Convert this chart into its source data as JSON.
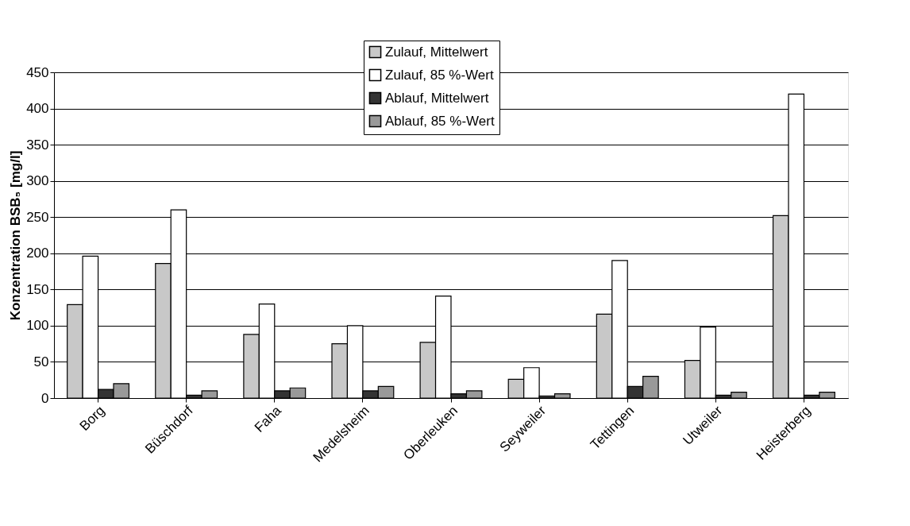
{
  "chart_data": {
    "type": "bar",
    "ylabel": "Konzentration BSB₅ [mg/l]",
    "categories": [
      "Borg",
      "Büschdorf",
      "Faha",
      "Medelsheim",
      "Oberleuken",
      "Seyweiler",
      "Tettingen",
      "Utweiler",
      "Heisterberg"
    ],
    "series": [
      {
        "name": "Zulauf, Mittelwert",
        "color": "#c8c8c8",
        "values": [
          129,
          186,
          88,
          75,
          77,
          26,
          116,
          52,
          252
        ]
      },
      {
        "name": "Zulauf, 85 %-Wert",
        "color": "#ffffff",
        "values": [
          196,
          260,
          130,
          100,
          141,
          42,
          190,
          98,
          420
        ]
      },
      {
        "name": "Ablauf, Mittelwert",
        "color": "#333333",
        "values": [
          12,
          4,
          10,
          10,
          6,
          3,
          16,
          4,
          4
        ]
      },
      {
        "name": "Ablauf, 85 %-Wert",
        "color": "#999999",
        "values": [
          20,
          10,
          14,
          16,
          10,
          6,
          30,
          8,
          8
        ]
      }
    ],
    "ylim": [
      0,
      450
    ],
    "yticks": [
      0,
      50,
      100,
      150,
      200,
      250,
      300,
      350,
      400,
      450
    ],
    "grid": "y",
    "legend": "top"
  }
}
